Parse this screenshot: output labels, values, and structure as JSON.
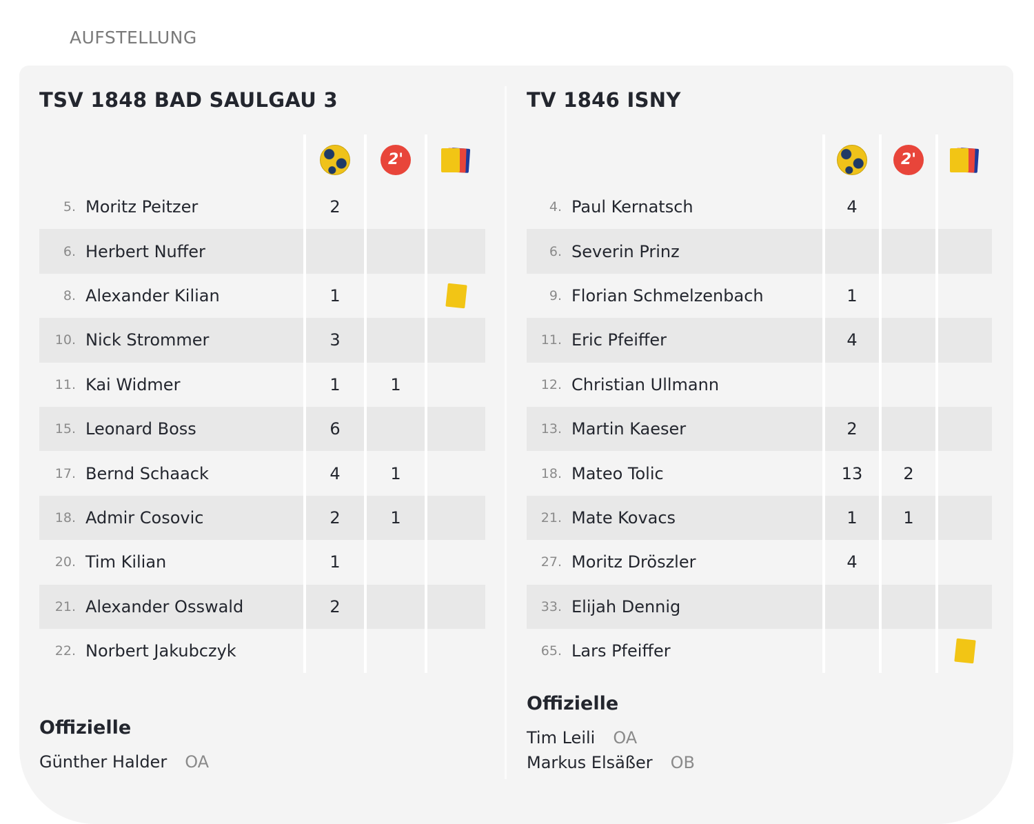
{
  "page_title": "AUFSTELLUNG",
  "column_icons": [
    "handball-goals-icon",
    "two-minute-penalty-icon",
    "cards-icon"
  ],
  "two_minute_label": "2'",
  "colors": {
    "yellow": "#f2c515",
    "red": "#e8453a",
    "blue": "#1e3a9a",
    "ball_navy": "#1f3a66"
  },
  "teams": [
    {
      "name": "TSV 1848 BAD SAULGAU 3",
      "players": [
        {
          "number": "5.",
          "name": "Moritz Peitzer",
          "goals": "2",
          "two_min": "",
          "yellow_card": false
        },
        {
          "number": "6.",
          "name": "Herbert Nuffer",
          "goals": "",
          "two_min": "",
          "yellow_card": false
        },
        {
          "number": "8.",
          "name": "Alexander Kilian",
          "goals": "1",
          "two_min": "",
          "yellow_card": true
        },
        {
          "number": "10.",
          "name": "Nick Strommer",
          "goals": "3",
          "two_min": "",
          "yellow_card": false
        },
        {
          "number": "11.",
          "name": "Kai Widmer",
          "goals": "1",
          "two_min": "1",
          "yellow_card": false
        },
        {
          "number": "15.",
          "name": "Leonard Boss",
          "goals": "6",
          "two_min": "",
          "yellow_card": false
        },
        {
          "number": "17.",
          "name": "Bernd Schaack",
          "goals": "4",
          "two_min": "1",
          "yellow_card": false
        },
        {
          "number": "18.",
          "name": "Admir Cosovic",
          "goals": "2",
          "two_min": "1",
          "yellow_card": false
        },
        {
          "number": "20.",
          "name": "Tim Kilian",
          "goals": "1",
          "two_min": "",
          "yellow_card": false
        },
        {
          "number": "21.",
          "name": "Alexander Osswald",
          "goals": "2",
          "two_min": "",
          "yellow_card": false
        },
        {
          "number": "22.",
          "name": "Norbert Jakubczyk",
          "goals": "",
          "two_min": "",
          "yellow_card": false
        }
      ],
      "officials_title": "Offizielle",
      "officials": [
        {
          "name": "Günther Halder",
          "role": "OA"
        }
      ]
    },
    {
      "name": "TV 1846 ISNY",
      "players": [
        {
          "number": "4.",
          "name": "Paul Kernatsch",
          "goals": "4",
          "two_min": "",
          "yellow_card": false
        },
        {
          "number": "6.",
          "name": "Severin Prinz",
          "goals": "",
          "two_min": "",
          "yellow_card": false
        },
        {
          "number": "9.",
          "name": "Florian Schmelzenbach",
          "goals": "1",
          "two_min": "",
          "yellow_card": false
        },
        {
          "number": "11.",
          "name": "Eric Pfeiffer",
          "goals": "4",
          "two_min": "",
          "yellow_card": false
        },
        {
          "number": "12.",
          "name": "Christian Ullmann",
          "goals": "",
          "two_min": "",
          "yellow_card": false
        },
        {
          "number": "13.",
          "name": "Martin Kaeser",
          "goals": "2",
          "two_min": "",
          "yellow_card": false
        },
        {
          "number": "18.",
          "name": "Mateo Tolic",
          "goals": "13",
          "two_min": "2",
          "yellow_card": false
        },
        {
          "number": "21.",
          "name": "Mate Kovacs",
          "goals": "1",
          "two_min": "1",
          "yellow_card": false
        },
        {
          "number": "27.",
          "name": "Moritz Dröszler",
          "goals": "4",
          "two_min": "",
          "yellow_card": false
        },
        {
          "number": "33.",
          "name": "Elijah Dennig",
          "goals": "",
          "two_min": "",
          "yellow_card": false
        },
        {
          "number": "65.",
          "name": "Lars Pfeiffer",
          "goals": "",
          "two_min": "",
          "yellow_card": true
        }
      ],
      "officials_title": "Offizielle",
      "officials": [
        {
          "name": "Tim Leili",
          "role": "OA"
        },
        {
          "name": "Markus Elsäßer",
          "role": "OB"
        }
      ]
    }
  ]
}
